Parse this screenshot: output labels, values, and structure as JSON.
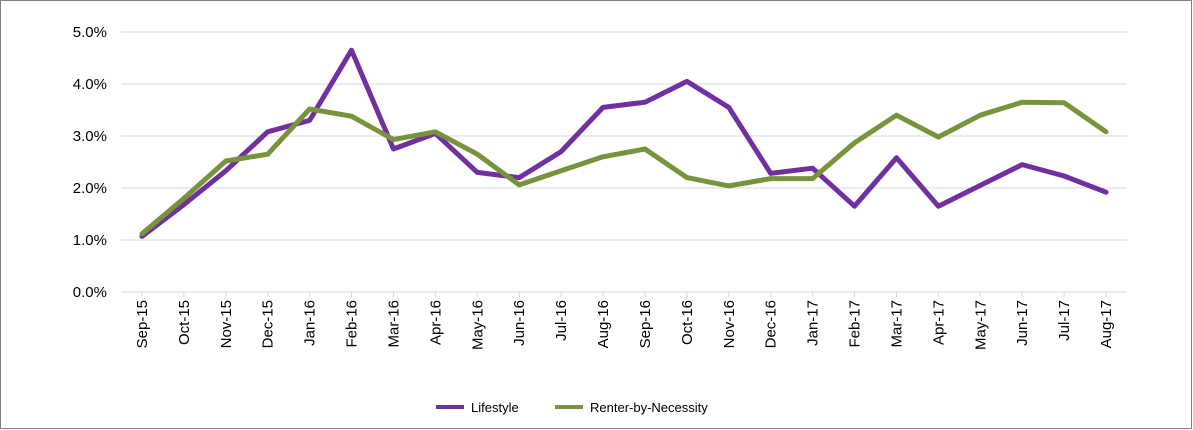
{
  "chart_data": {
    "type": "line",
    "title": "",
    "xlabel": "",
    "ylabel": "",
    "categories": [
      "Sep-15",
      "Oct-15",
      "Nov-15",
      "Dec-15",
      "Jan-16",
      "Feb-16",
      "Mar-16",
      "Apr-16",
      "May-16",
      "Jun-16",
      "Jul-16",
      "Aug-16",
      "Sep-16",
      "Oct-16",
      "Nov-16",
      "Dec-16",
      "Jan-17",
      "Feb-17",
      "Mar-17",
      "Apr-17",
      "May-17",
      "Jun-17",
      "Jul-17",
      "Aug-17"
    ],
    "ylim": [
      0,
      5
    ],
    "yticks": [
      "0.0%",
      "1.0%",
      "2.0%",
      "3.0%",
      "4.0%",
      "5.0%"
    ],
    "grid": true,
    "legend_position": "bottom",
    "series": [
      {
        "name": "Lifestyle",
        "color": "#7030a0",
        "values": [
          1.07,
          1.68,
          2.33,
          3.08,
          3.3,
          4.65,
          2.75,
          3.05,
          2.3,
          2.2,
          2.7,
          3.55,
          3.65,
          4.05,
          3.55,
          2.28,
          2.38,
          1.65,
          2.58,
          1.65,
          2.05,
          2.45,
          2.23,
          1.92
        ]
      },
      {
        "name": "Renter-by-Necessity",
        "color": "#77933c",
        "values": [
          1.12,
          1.8,
          2.52,
          2.65,
          3.52,
          3.38,
          2.93,
          3.08,
          2.65,
          2.06,
          2.33,
          2.6,
          2.75,
          2.2,
          2.04,
          2.18,
          2.18,
          2.87,
          3.4,
          2.98,
          3.4,
          3.65,
          3.64,
          3.08
        ]
      }
    ]
  }
}
